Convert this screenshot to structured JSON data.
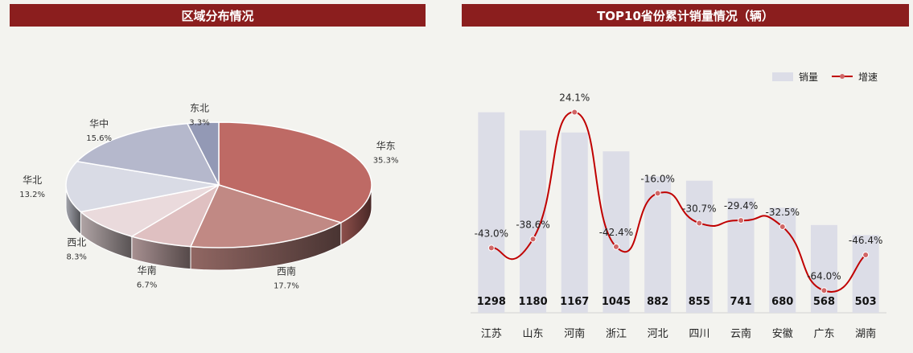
{
  "left_panel": {
    "title": "区域分布情况"
  },
  "right_panel": {
    "title": "TOP10省份累计销量情况（辆）"
  },
  "chart_data": [
    {
      "type": "pie",
      "title": "区域分布情况",
      "slices": [
        {
          "name": "华东",
          "value": 35.3,
          "label": "35.3%",
          "color": "#be6a65"
        },
        {
          "name": "西南",
          "value": 17.7,
          "label": "17.7%",
          "color": "#c18984"
        },
        {
          "name": "华南",
          "value": 6.7,
          "label": "6.7%",
          "color": "#dfc0c1"
        },
        {
          "name": "西北",
          "value": 8.3,
          "label": "8.3%",
          "color": "#eadadc"
        },
        {
          "name": "华北",
          "value": 13.2,
          "label": "13.2%",
          "color": "#d9dbe5"
        },
        {
          "name": "华中",
          "value": 15.6,
          "label": "15.6%",
          "color": "#b5b8cc"
        },
        {
          "name": "东北",
          "value": 3.3,
          "label": "3.3%",
          "color": "#9399b5"
        }
      ]
    },
    {
      "type": "bar",
      "title": "TOP10省份累计销量情况（辆）",
      "categories": [
        "江苏",
        "山东",
        "河南",
        "浙江",
        "河北",
        "四川",
        "云南",
        "安徽",
        "广东",
        "湖南"
      ],
      "series": [
        {
          "name": "销量",
          "type": "bar",
          "values": [
            1298,
            1180,
            1167,
            1045,
            882,
            855,
            741,
            680,
            568,
            503
          ],
          "color": "#dcdde7"
        },
        {
          "name": "增速",
          "type": "line",
          "values": [
            -43.0,
            -38.6,
            24.1,
            -42.4,
            -16.0,
            -30.7,
            -29.4,
            -32.5,
            -64.0,
            -46.4
          ],
          "labels": [
            "-43.0%",
            "-38.6%",
            "24.1%",
            "-42.4%",
            "-16.0%",
            "-30.7%",
            "-29.4%",
            "-32.5%",
            "-64.0%",
            "-46.4%"
          ],
          "color": "#c00000"
        }
      ],
      "bar_ylim": [
        0,
        1400
      ],
      "line_ylim": [
        -75,
        35
      ],
      "legend": "top-right"
    }
  ]
}
